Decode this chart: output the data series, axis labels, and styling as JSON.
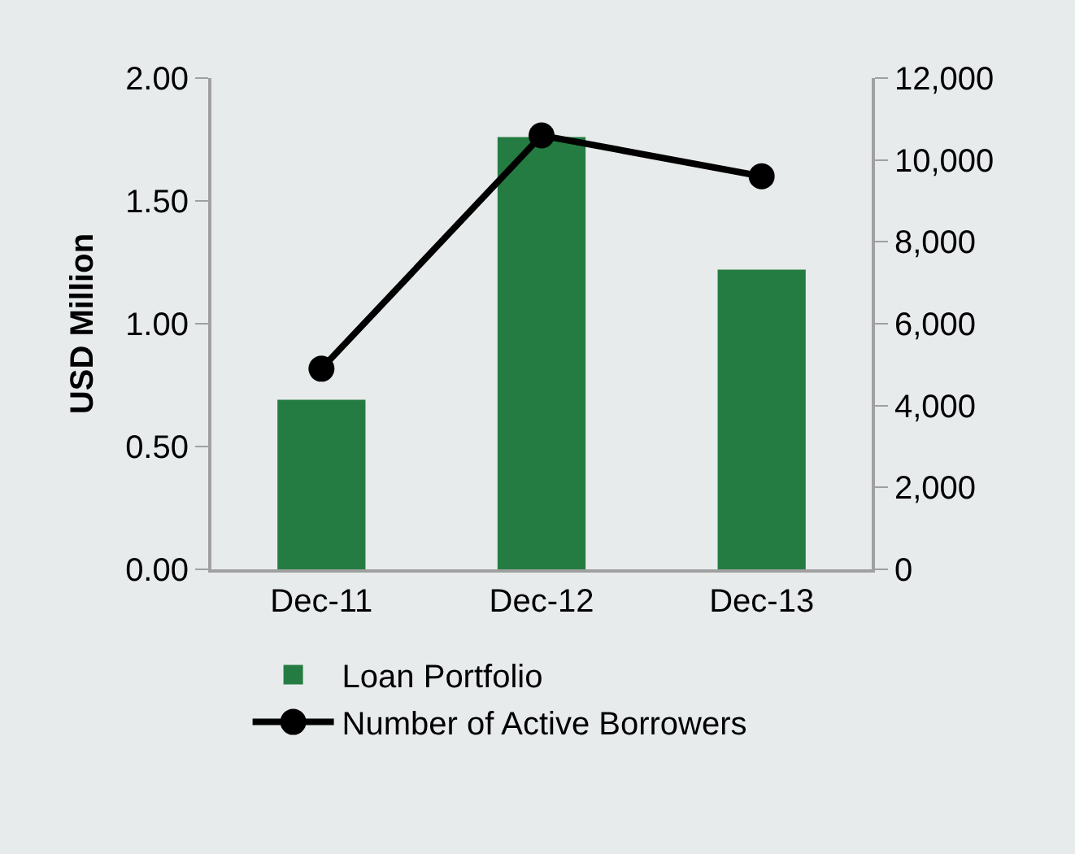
{
  "chart_data": {
    "type": "bar",
    "ylabel": "USD Million",
    "categories": [
      "Dec-11",
      "Dec-12",
      "Dec-13"
    ],
    "series": [
      {
        "name": "Loan Portfolio",
        "color": "#247c42",
        "values": [
          0.69,
          1.76,
          1.22
        ]
      },
      {
        "name": "Number of Active Borrowers",
        "type": "line",
        "axis": "y2",
        "color": "#000000",
        "values": [
          4900,
          10600,
          9600
        ]
      }
    ],
    "ylim": [
      0,
      2
    ],
    "yticks": [
      {
        "value": 0,
        "label": "0.00"
      },
      {
        "value": 0.5,
        "label": "0.50"
      },
      {
        "value": 1,
        "label": "1.00"
      },
      {
        "value": 1.5,
        "label": "1.50"
      },
      {
        "value": 2,
        "label": "2.00"
      }
    ],
    "y2lim": [
      0,
      12000
    ],
    "y2ticks": [
      {
        "value": 0,
        "label": "0"
      },
      {
        "value": 2000,
        "label": "2,000"
      },
      {
        "value": 4000,
        "label": "4,000"
      },
      {
        "value": 6000,
        "label": "6,000"
      },
      {
        "value": 8000,
        "label": "8,000"
      },
      {
        "value": 10000,
        "label": "10,000"
      },
      {
        "value": 12000,
        "label": "12,000"
      }
    ],
    "grid": false,
    "legend": "bottom",
    "marker": "circle",
    "line_style": "solid"
  }
}
